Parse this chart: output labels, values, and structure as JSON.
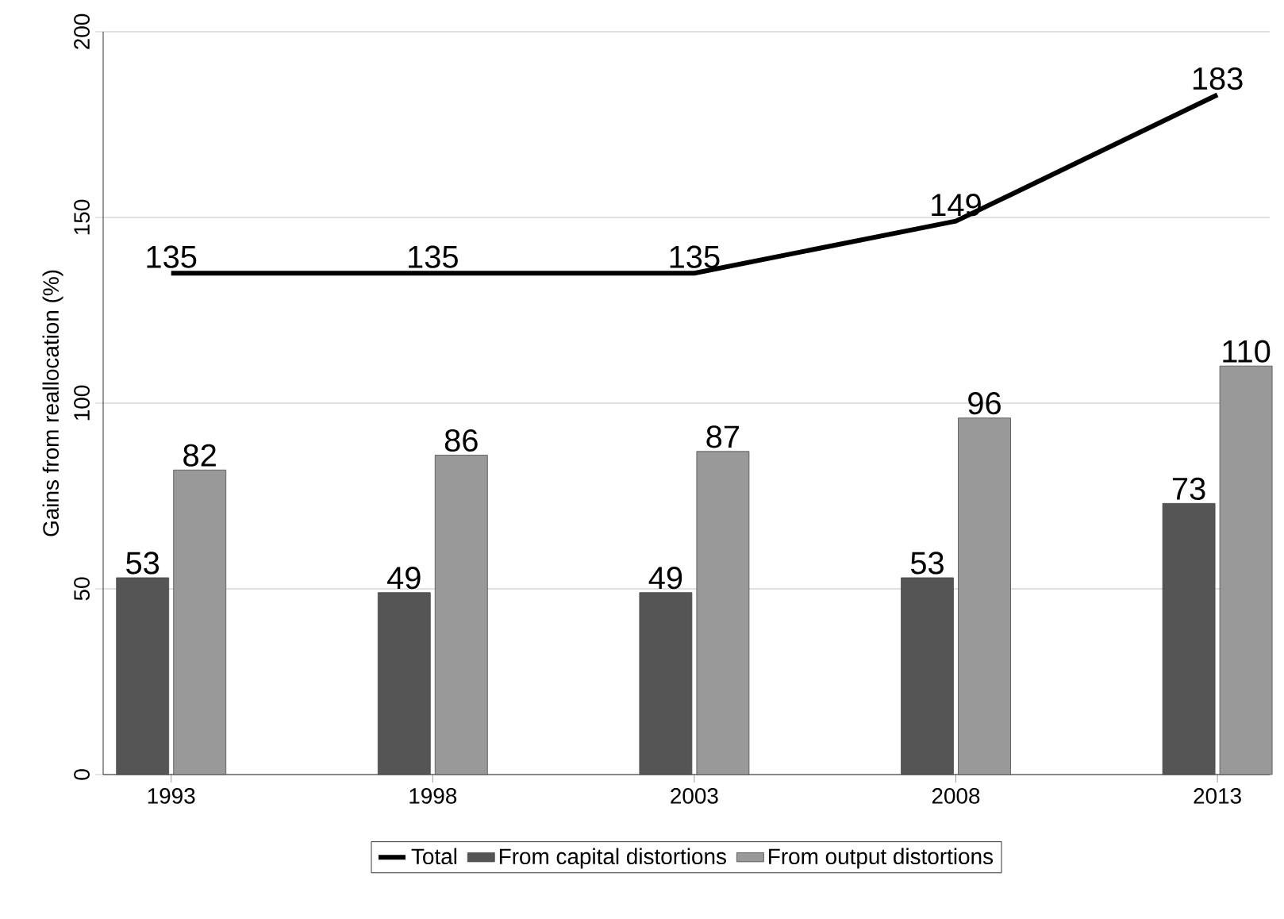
{
  "chart_data": {
    "type": "bar",
    "ylabel": "Gains from reallocation (%)",
    "categories": [
      "1993",
      "1998",
      "2003",
      "2008",
      "2013"
    ],
    "series": [
      {
        "name": "Total",
        "type": "line",
        "color": "#000000",
        "values": [
          135,
          135,
          135,
          149,
          183
        ]
      },
      {
        "name": "From capital distortions",
        "color": "#555555",
        "values": [
          53,
          49,
          49,
          53,
          73
        ]
      },
      {
        "name": "From output distortions",
        "color": "#999999",
        "values": [
          82,
          86,
          87,
          96,
          110
        ]
      }
    ],
    "ylim": [
      0,
      200
    ],
    "yticks": [
      0,
      50,
      100,
      150,
      200
    ],
    "grid": "y",
    "legend": "bottom",
    "data_labels": true
  }
}
